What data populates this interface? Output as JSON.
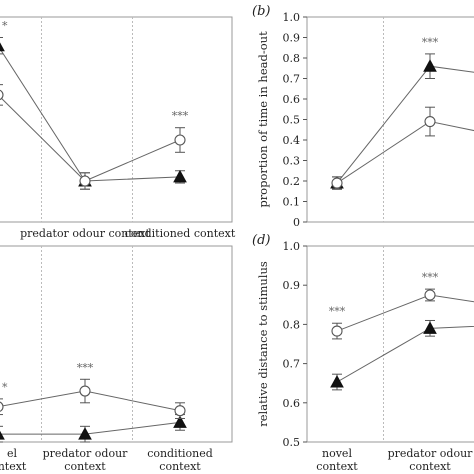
{
  "chart_data": [
    {
      "panel_label": "",
      "type": "line",
      "ylabel": "",
      "categories": [
        "",
        "predator odour context",
        "conditioned context"
      ],
      "yticks": [],
      "ylim": [
        0.0,
        1.0
      ],
      "series": [
        {
          "marker": "triangle-filled",
          "values": [
            0.86,
            0.2,
            0.22
          ],
          "err": [
            0.04,
            0.04,
            0.03
          ]
        },
        {
          "marker": "circle-open",
          "values": [
            0.62,
            0.2,
            0.4
          ],
          "err": [
            0.05,
            0.04,
            0.06
          ]
        }
      ],
      "significance": [
        {
          "category_index": 0,
          "text": "*"
        },
        {
          "category_index": 2,
          "text": "***"
        }
      ]
    },
    {
      "panel_label": "(b)",
      "type": "line",
      "ylabel": "proportion of time in head-out",
      "categories": [
        "",
        "",
        ""
      ],
      "yticks": [
        "0",
        "0.1",
        "0.2",
        "0.3",
        "0.4",
        "0.5",
        "0.6",
        "0.7",
        "0.8",
        "0.9",
        "1.0"
      ],
      "ylim": [
        0.0,
        1.0
      ],
      "series": [
        {
          "marker": "triangle-filled",
          "values": [
            0.19,
            0.76,
            0.7
          ],
          "err": [
            0.03,
            0.06,
            0.05
          ]
        },
        {
          "marker": "circle-open",
          "values": [
            0.19,
            0.49,
            0.4
          ],
          "err": [
            0.03,
            0.07,
            0.05
          ]
        }
      ],
      "significance": [
        {
          "category_index": 1,
          "text": "***"
        }
      ]
    },
    {
      "panel_label": "",
      "type": "line",
      "ylabel": "",
      "categories": [
        "novel\ncontext",
        "predator odour\ncontext",
        "conditioned\ncontext"
      ],
      "category_labels_visible": [
        "el\nntext",
        "predator odour\ncontext",
        "conditioned\ncontext"
      ],
      "yticks": [],
      "ylim": [
        0.5,
        1.0
      ],
      "series": [
        {
          "marker": "triangle-filled",
          "values": [
            0.52,
            0.52,
            0.55
          ],
          "err": [
            0.02,
            0.02,
            0.02
          ]
        },
        {
          "marker": "circle-open",
          "values": [
            0.59,
            0.63,
            0.58
          ],
          "err": [
            0.02,
            0.03,
            0.02
          ]
        }
      ],
      "significance": [
        {
          "category_index": 0,
          "text": "*"
        },
        {
          "category_index": 1,
          "text": "***"
        }
      ]
    },
    {
      "panel_label": "(d)",
      "type": "line",
      "ylabel": "relative distance to stimulus",
      "categories": [
        "novel\ncontext",
        "predator odour\ncontext",
        ""
      ],
      "yticks": [
        "0.5",
        "0.6",
        "0.7",
        "0.8",
        "0.9",
        "1.0"
      ],
      "ylim": [
        0.5,
        1.0
      ],
      "series": [
        {
          "marker": "triangle-filled",
          "values": [
            0.653,
            0.79,
            0.8
          ],
          "err": [
            0.02,
            0.02,
            0.02
          ]
        },
        {
          "marker": "circle-open",
          "values": [
            0.783,
            0.875,
            0.84
          ],
          "err": [
            0.02,
            0.015,
            0.02
          ]
        }
      ],
      "significance": [
        {
          "category_index": 0,
          "text": "***"
        },
        {
          "category_index": 1,
          "text": "***"
        }
      ]
    }
  ]
}
